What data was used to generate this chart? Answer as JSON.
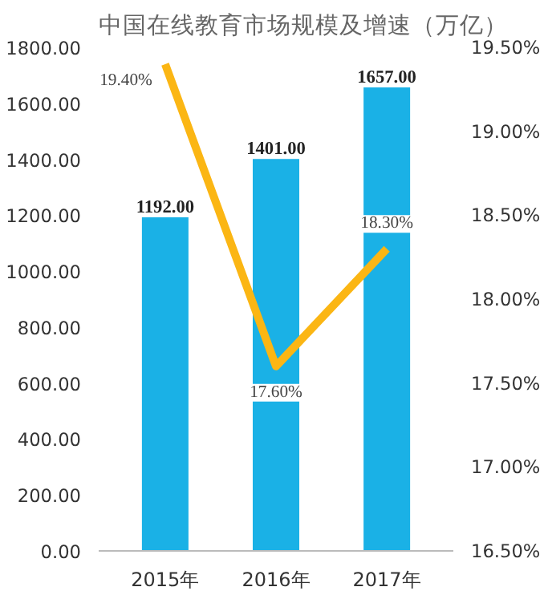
{
  "chart_data": {
    "type": "bar",
    "title": "中国在线教育市场规模及增速（万亿）",
    "categories": [
      "2015年",
      "2016年",
      "2017年"
    ],
    "series": [
      {
        "color": "#1ab1e6",
        "values": [
          1192,
          1401,
          1657
        ],
        "value_labels": [
          "1192.00",
          "1401.00",
          "1657.00"
        ]
      },
      {
        "type": "line",
        "axis": "y2",
        "color": "#fbb614",
        "values": [
          19.4,
          17.6,
          18.3
        ],
        "value_labels": [
          "19.40%",
          "17.60%",
          "18.30%"
        ]
      }
    ],
    "ylim": [
      0,
      1800
    ],
    "yticks": [
      {
        "value": 0,
        "label": "0.00"
      },
      {
        "value": 200,
        "label": "200.00"
      },
      {
        "value": 400,
        "label": "400.00"
      },
      {
        "value": 600,
        "label": "600.00"
      },
      {
        "value": 800,
        "label": "800.00"
      },
      {
        "value": 1000,
        "label": "1000.00"
      },
      {
        "value": 1200,
        "label": "1200.00"
      },
      {
        "value": 1400,
        "label": "1400.00"
      },
      {
        "value": 1600,
        "label": "1600.00"
      },
      {
        "value": 1800,
        "label": "1800.00"
      }
    ],
    "y2lim": [
      16.5,
      19.5
    ],
    "y2ticks": [
      {
        "value": 16.5,
        "label": "16.50%"
      },
      {
        "value": 17,
        "label": "17.00%"
      },
      {
        "value": 17.5,
        "label": "17.50%"
      },
      {
        "value": 18,
        "label": "18.00%"
      },
      {
        "value": 18.5,
        "label": "18.50%"
      },
      {
        "value": 19,
        "label": "19.00%"
      },
      {
        "value": 19.5,
        "label": "19.50%"
      }
    ],
    "grid": false,
    "marker": "none",
    "line_style": "solid"
  }
}
